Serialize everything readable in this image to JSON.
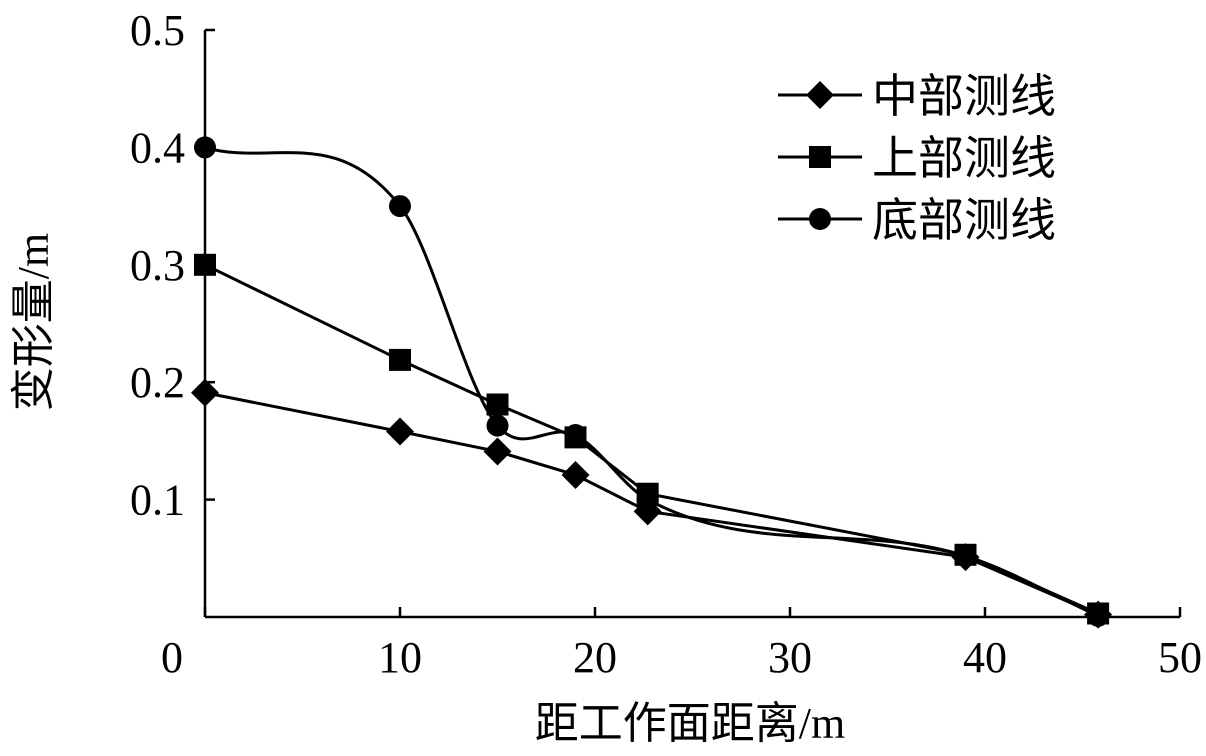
{
  "chart_data": {
    "type": "line",
    "title": "",
    "xlabel": "距工作面距离/m",
    "ylabel": "变形量/m",
    "xlim": [
      0,
      50
    ],
    "ylim": [
      0,
      0.5
    ],
    "xticks": [
      "0",
      "10",
      "20",
      "30",
      "40",
      "50"
    ],
    "xtick_values": [
      0,
      10,
      20,
      30,
      40,
      50
    ],
    "yticks": [
      "0.1",
      "0.2",
      "0.3",
      "0.4",
      "0.5"
    ],
    "ytick_values": [
      0.1,
      0.2,
      0.3,
      0.4,
      0.5
    ],
    "grid": false,
    "legend_position": "top-right",
    "series": [
      {
        "name": "中部测线",
        "marker": "diamond",
        "smooth": false,
        "x": [
          0,
          10,
          15,
          19,
          22.7,
          39,
          45.8
        ],
        "y": [
          0.191,
          0.158,
          0.141,
          0.121,
          0.09,
          0.051,
          0.002
        ]
      },
      {
        "name": "上部测线",
        "marker": "square",
        "smooth": false,
        "x": [
          0,
          10,
          15,
          19,
          22.7,
          39,
          45.8
        ],
        "y": [
          0.3,
          0.219,
          0.181,
          0.153,
          0.105,
          0.053,
          0.003
        ]
      },
      {
        "name": "底部测线",
        "marker": "circle",
        "smooth": true,
        "x": [
          0,
          10,
          15,
          19,
          22.7,
          39,
          45.8
        ],
        "y": [
          0.4,
          0.35,
          0.163,
          0.155,
          0.1,
          0.052,
          0.001
        ]
      }
    ]
  }
}
